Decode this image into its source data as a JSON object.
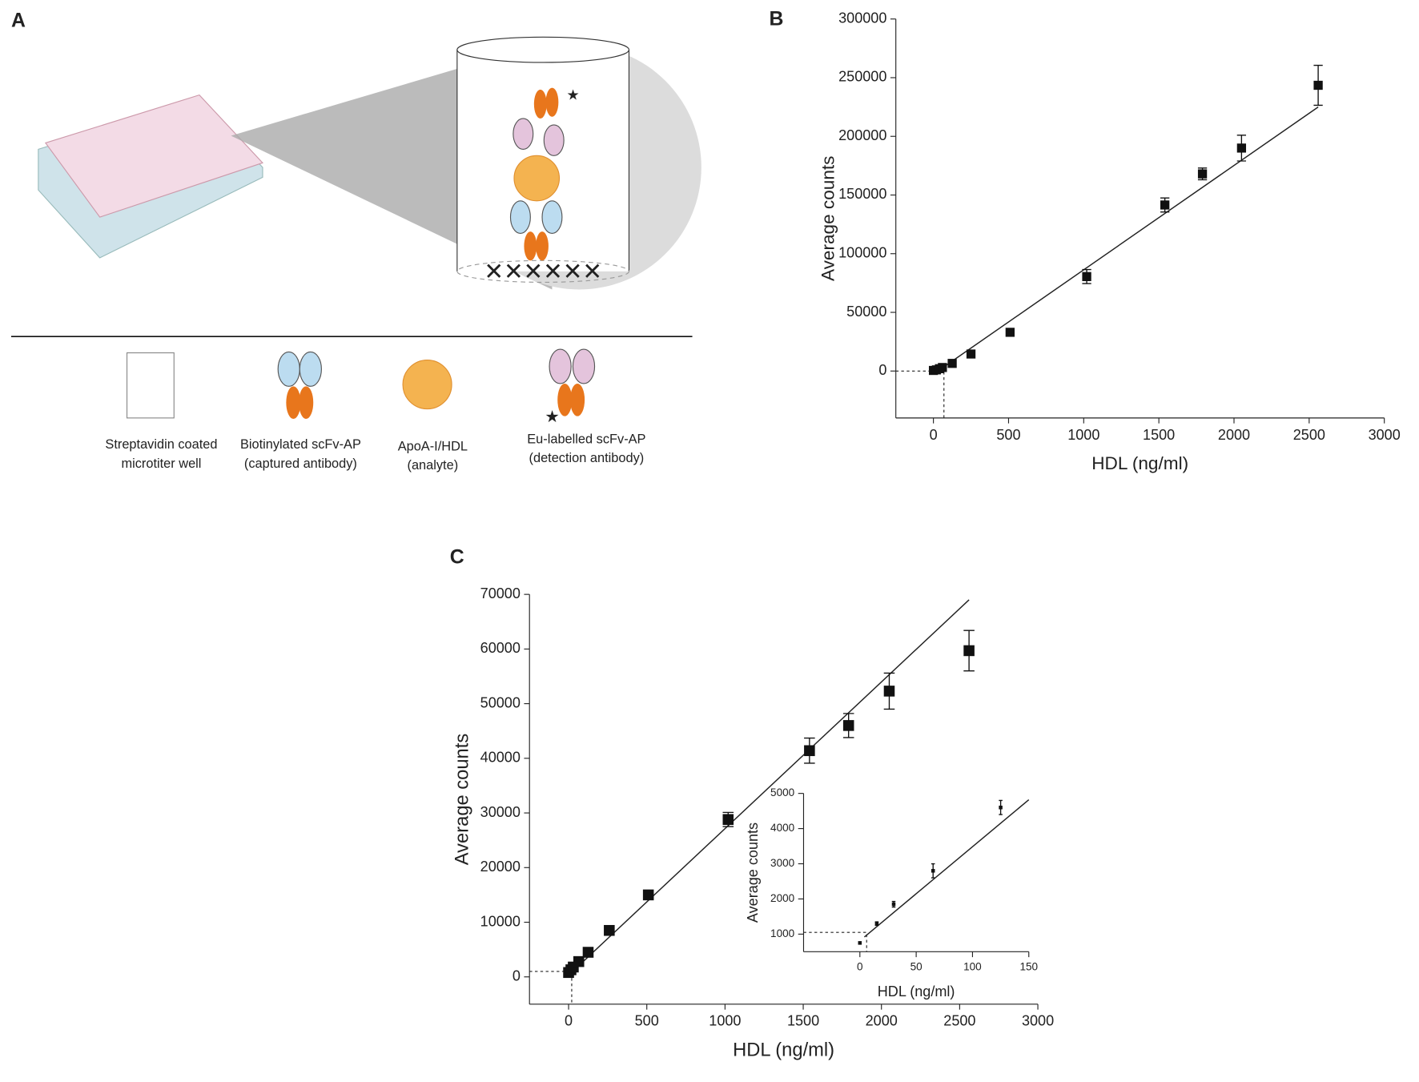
{
  "diagram": {
    "label": "A",
    "items": [
      {
        "lines": [
          "Streptavidin coated",
          "microtiter well"
        ]
      },
      {
        "lines": [
          "Biotinylated scFv-AP",
          "(captured antibody)"
        ]
      },
      {
        "lines": [
          "ApoA-I/HDL",
          "(analyte)"
        ]
      },
      {
        "lines": [
          "Eu-labelled  scFv-AP",
          "(detection antibody)"
        ]
      }
    ]
  },
  "chart_data": [
    {
      "type": "scatter",
      "label": "B",
      "x_label": "HDL (ng/ml)",
      "y_label": "Average counts",
      "xlim": [
        -250,
        3000
      ],
      "ylim": [
        -40000,
        300000
      ],
      "xticks": [
        0,
        500,
        1000,
        1500,
        2000,
        2500,
        3000
      ],
      "yticks": [
        0,
        50000,
        100000,
        150000,
        200000,
        250000,
        300000
      ],
      "series": [
        {
          "color": "#111111",
          "x": [
            0,
            20,
            40,
            60,
            125,
            250,
            510,
            1020,
            1540,
            1790,
            2050,
            2560
          ],
          "values": [
            500,
            1000,
            2000,
            3000,
            6500,
            14500,
            33000,
            80500,
            141500,
            168000,
            190000,
            243500
          ],
          "errors": [
            null,
            null,
            null,
            null,
            null,
            null,
            null,
            6000,
            6000,
            5000,
            11000,
            17000
          ]
        }
      ],
      "fit": {
        "x": [
          30,
          2560
        ],
        "y": [
          0,
          225000
        ]
      },
      "cutoff": {
        "x": 70,
        "y": 0
      }
    },
    {
      "type": "scatter",
      "label": "C",
      "x_label": "HDL (ng/ml)",
      "y_label": "Average counts",
      "xlim": [
        -250,
        3000
      ],
      "ylim": [
        -5000,
        70000
      ],
      "xticks": [
        0,
        500,
        1000,
        1500,
        2000,
        2500,
        3000
      ],
      "yticks": [
        0,
        10000,
        20000,
        30000,
        40000,
        50000,
        60000,
        70000
      ],
      "series": [
        {
          "color": "#111111",
          "x": [
            0,
            15,
            30,
            65,
            125,
            260,
            510,
            1020,
            1540,
            1790,
            2050,
            2560
          ],
          "values": [
            800,
            1300,
            1800,
            2800,
            4500,
            8500,
            15000,
            28800,
            41400,
            46000,
            52300,
            59700
          ],
          "errors": [
            null,
            null,
            null,
            null,
            null,
            null,
            null,
            1300,
            2300,
            2200,
            3300,
            3700
          ]
        }
      ],
      "fit": {
        "x": [
          0,
          2560
        ],
        "y": [
          300,
          69000
        ]
      },
      "cutoff": {
        "x": 20,
        "y": 1000
      }
    },
    {
      "type": "scatter",
      "x_label": "HDL (ng/ml)",
      "y_label": "Average counts",
      "xlim": [
        -50,
        150
      ],
      "ylim": [
        500,
        5000
      ],
      "xticks": [
        0,
        50,
        100,
        150
      ],
      "yticks": [
        1000,
        2000,
        3000,
        4000,
        5000
      ],
      "series": [
        {
          "color": "#111111",
          "x": [
            0,
            15,
            30,
            65,
            125
          ],
          "values": [
            750,
            1300,
            1850,
            2800,
            4600
          ],
          "errors": [
            null,
            50,
            80,
            200,
            200
          ]
        }
      ],
      "fit": {
        "x": [
          4,
          150
        ],
        "y": [
          920,
          4820
        ]
      },
      "cutoff": {
        "x": 6,
        "y": 1050
      }
    }
  ]
}
